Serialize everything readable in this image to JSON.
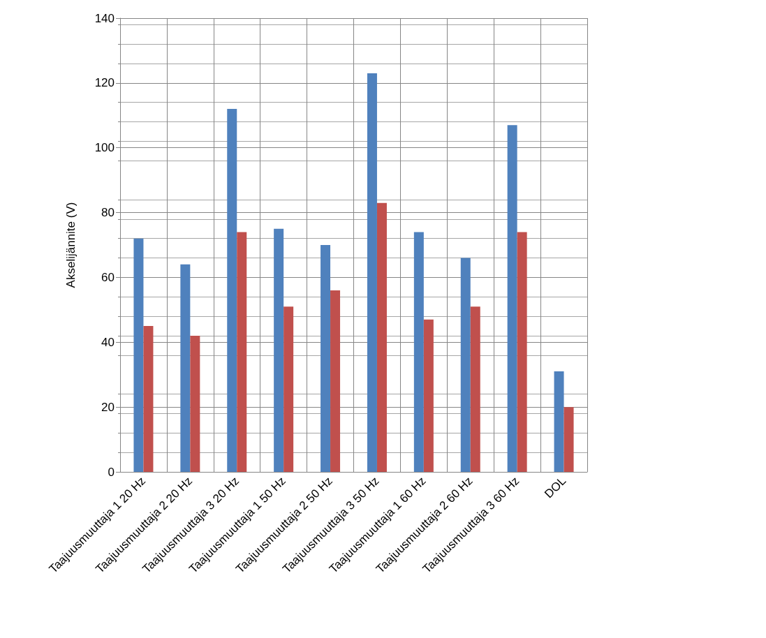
{
  "chart_data": {
    "type": "bar",
    "ylabel": "Akselijännite (V)",
    "categories": [
      "Taajuusmuuttaja 1 20 Hz",
      "Taajuusmuuttaja 2 20 Hz",
      "Taajuusmuuttaja 3 20 Hz",
      "Taajuusmuuttaja 1 50 Hz",
      "Taajuusmuuttaja 2 50 Hz",
      "Taajuusmuuttaja 3 50 Hz",
      "Taajuusmuuttaja 1 60 Hz",
      "Taajuusmuuttaja 2 60 Hz",
      "Taajuusmuuttaja 3 60 Hz",
      "DOL"
    ],
    "series": [
      {
        "color": "#4f81bd",
        "values": [
          72,
          64,
          112,
          75,
          70,
          123,
          74,
          66,
          107,
          31
        ]
      },
      {
        "color": "#c0504d",
        "values": [
          45,
          42,
          74,
          51,
          56,
          83,
          47,
          51,
          74,
          20
        ]
      }
    ],
    "ylim": [
      0,
      140
    ],
    "yticks": [
      0,
      20,
      40,
      60,
      80,
      100,
      120,
      140
    ],
    "grid": true
  }
}
